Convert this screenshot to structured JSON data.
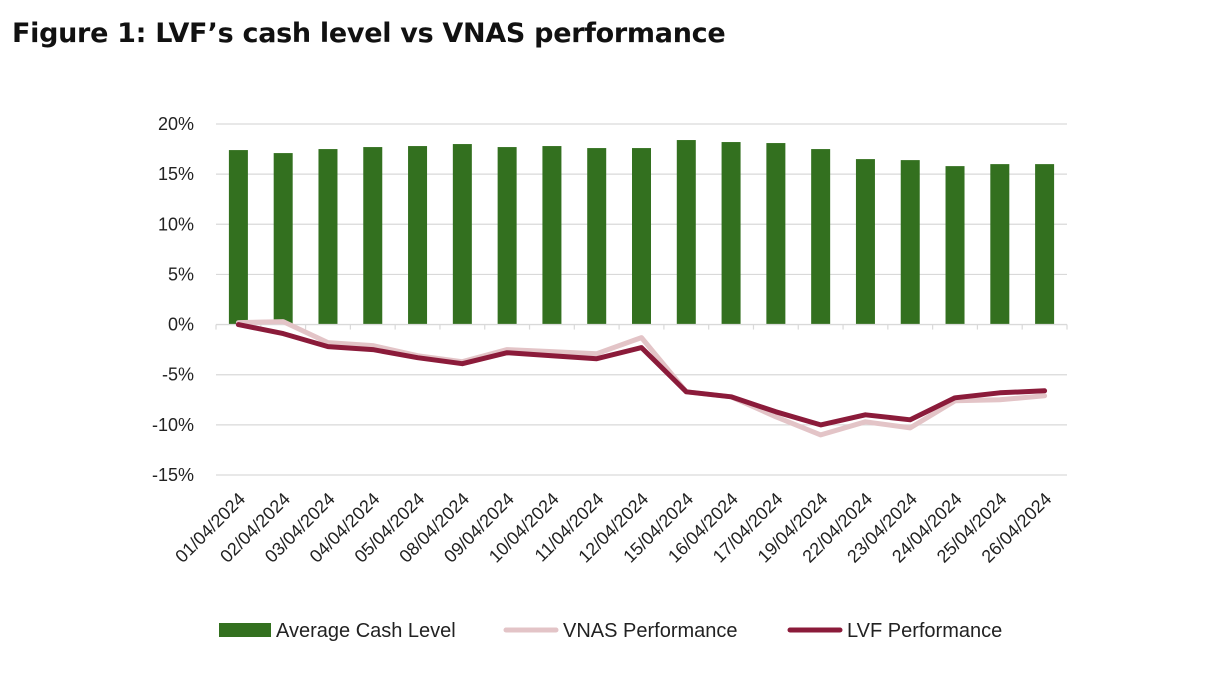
{
  "page": {
    "title": "Figure 1: LVF’s cash level vs VNAS performance"
  },
  "chart_data": {
    "type": "bar",
    "title": "Figure 1: LVF’s cash level vs VNAS performance",
    "xlabel": "",
    "ylabel": "",
    "ylim": [
      -15,
      20
    ],
    "yticks": [
      20,
      15,
      10,
      5,
      0,
      -5,
      -10,
      -15
    ],
    "ytick_labels": [
      "20%",
      "15%",
      "10%",
      "5%",
      "0%",
      "-5%",
      "-10%",
      "-15%"
    ],
    "grid": true,
    "legend_position": "bottom",
    "categories": [
      "01/04/2024",
      "02/04/2024",
      "03/04/2024",
      "04/04/2024",
      "05/04/2024",
      "08/04/2024",
      "09/04/2024",
      "10/04/2024",
      "11/04/2024",
      "12/04/2024",
      "15/04/2024",
      "16/04/2024",
      "17/04/2024",
      "19/04/2024",
      "22/04/2024",
      "23/04/2024",
      "24/04/2024",
      "25/04/2024",
      "26/04/2024"
    ],
    "series": [
      {
        "name": "Average Cash Level",
        "type": "bar",
        "color": "#33701f",
        "values": [
          17.4,
          17.1,
          17.5,
          17.7,
          17.8,
          18.0,
          17.7,
          17.8,
          17.6,
          17.6,
          18.4,
          18.2,
          18.1,
          17.5,
          16.5,
          16.4,
          15.8,
          16.0,
          16.0
        ]
      },
      {
        "name": "VNAS Performance",
        "type": "line",
        "color": "#e3c4c7",
        "values": [
          0.2,
          0.3,
          -1.8,
          -2.1,
          -3.1,
          -3.7,
          -2.5,
          -2.7,
          -2.9,
          -1.3,
          -6.7,
          -7.2,
          -9.2,
          -11.0,
          -9.7,
          -10.3,
          -7.6,
          -7.5,
          -7.1
        ]
      },
      {
        "name": "LVF Performance",
        "type": "line",
        "color": "#8b1b3a",
        "values": [
          0.0,
          -0.9,
          -2.2,
          -2.5,
          -3.3,
          -3.9,
          -2.8,
          -3.1,
          -3.4,
          -2.3,
          -6.7,
          -7.2,
          -8.7,
          -10.0,
          -9.0,
          -9.5,
          -7.3,
          -6.8,
          -6.6
        ]
      }
    ]
  }
}
